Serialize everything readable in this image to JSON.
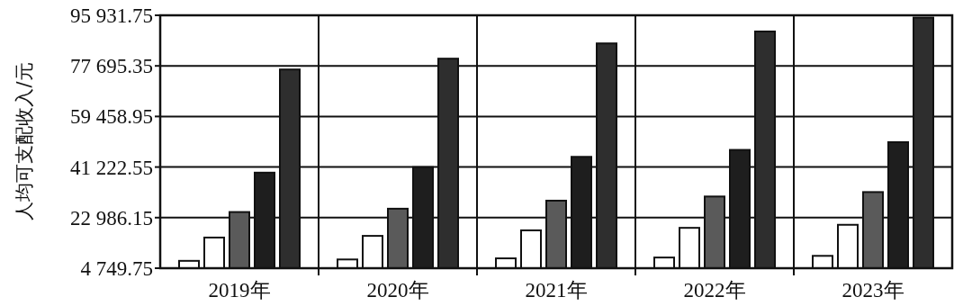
{
  "chart_data": {
    "type": "bar",
    "ylabel": "人均可支配收入/元",
    "categories": [
      "2019年",
      "2020年",
      "2021年",
      "2022年",
      "2023年"
    ],
    "series": [
      {
        "color": "#ffffff",
        "values": [
          7400,
          7900,
          8300,
          8600,
          9200
        ]
      },
      {
        "color": "#ffffff",
        "values": [
          15800,
          16400,
          18400,
          19300,
          20400
        ]
      },
      {
        "color": "#5a5a5a",
        "values": [
          25000,
          26200,
          29100,
          30600,
          32200
        ]
      },
      {
        "color": "#1e1e1e",
        "values": [
          39200,
          41200,
          44900,
          47400,
          50200
        ]
      },
      {
        "color": "#2e2e2e",
        "values": [
          76400,
          80300,
          85800,
          90100,
          95100
        ]
      }
    ],
    "ylim": [
      4749.75,
      95931.75
    ],
    "yticks": [
      {
        "value": 4749.75,
        "label": "4 749.75"
      },
      {
        "value": 22986.15,
        "label": "22 986.15"
      },
      {
        "value": 41222.55,
        "label": "41 222.55"
      },
      {
        "value": 59458.95,
        "label": "59 458.95"
      },
      {
        "value": 77695.35,
        "label": "77 695.35"
      },
      {
        "value": 95931.75,
        "label": "95 931.75"
      }
    ],
    "grid": "y"
  }
}
